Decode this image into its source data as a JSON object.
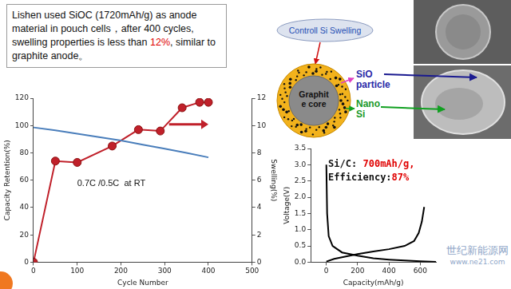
{
  "text_box": {
    "parts": [
      {
        "text": "Lishen used SiOC (1720mAh/g) as anode material in pouch cells，after 400 cycles, swelling properties is less than "
      },
      {
        "text": "12%",
        "color": "#e00000"
      },
      {
        "text": ", similar to graphite anode。"
      }
    ]
  },
  "diagram": {
    "callout": "Controll Si Swelling",
    "core": [
      "Graphit",
      "e core"
    ],
    "labels": [
      {
        "lines": [
          "SiO",
          "particle"
        ],
        "color": "#2a2aa8"
      },
      {
        "lines": [
          "Nano",
          "Si"
        ],
        "color": "#1a9a2a"
      }
    ]
  },
  "watermark": [
    "世纪新能源网",
    "www.ne21.com"
  ],
  "chart_data": [
    {
      "type": "line",
      "x_label": "Cycle Number",
      "y_label": "Capacity Retention(%)",
      "y2_label": "Swelling(%)",
      "annotations": [
        "0.7C /0.5C  at RT"
      ],
      "xlim": [
        0,
        500
      ],
      "xticks": [
        0,
        100,
        200,
        300,
        400,
        500
      ],
      "ylim": [
        0,
        120
      ],
      "yticks": [
        0,
        20,
        40,
        60,
        80,
        100,
        120
      ],
      "y2lim": [
        0,
        12
      ],
      "y2ticks": [
        0,
        2,
        4,
        6,
        8,
        10,
        12
      ],
      "grid": false,
      "series": [
        {
          "color": "#4a7ebb",
          "marker": "none",
          "x": [
            0,
            50,
            100,
            150,
            200,
            250,
            300,
            350,
            400
          ],
          "values": [
            98.6,
            96.5,
            94,
            91.5,
            89,
            86,
            83,
            80,
            76.7
          ]
        },
        {
          "color": "#c0202a",
          "marker": "circle",
          "axis": "y2",
          "x": [
            0,
            50,
            100,
            180,
            240,
            290,
            340,
            380,
            400
          ],
          "values": [
            0,
            7.4,
            7.3,
            8.5,
            9.7,
            9.6,
            11.3,
            11.7,
            11.7
          ]
        }
      ]
    },
    {
      "type": "line",
      "x_label": "Capacity(mAh/g)",
      "y_label": "Voltage(V)",
      "annotations": [
        {
          "parts": [
            {
              "text": "Si/C: "
            },
            {
              "text": "700mAh/g,",
              "color": "#e00000"
            }
          ]
        },
        {
          "parts": [
            {
              "text": "Efficiency:"
            },
            {
              "text": "87%",
              "color": "#e00000"
            }
          ]
        }
      ],
      "xlim": [
        -100,
        700
      ],
      "xticks": [
        0,
        200,
        400,
        600
      ],
      "ylim": [
        0,
        3.5
      ],
      "yticks": [
        {
          "value": 0,
          "label": "0.0"
        },
        0.5,
        {
          "value": 1,
          "label": "1.0"
        },
        1.5,
        {
          "value": 2,
          "label": "2.0"
        },
        2.5,
        {
          "value": 3,
          "label": "3.0"
        },
        3.5
      ],
      "grid": false,
      "series": [
        {
          "color": "#000000",
          "marker": "none",
          "x": [
            0,
            5,
            15,
            40,
            100,
            200,
            300,
            400,
            500,
            600,
            700
          ],
          "values": [
            3.0,
            1.5,
            0.8,
            0.5,
            0.3,
            0.2,
            0.12,
            0.08,
            0.05,
            0.03,
            0.01
          ]
        },
        {
          "color": "#000000",
          "marker": "none",
          "x": [
            0,
            50,
            100,
            200,
            300,
            400,
            500,
            560,
            590,
            610,
            625
          ],
          "values": [
            0.02,
            0.1,
            0.15,
            0.25,
            0.33,
            0.4,
            0.5,
            0.65,
            0.9,
            1.25,
            1.7
          ]
        }
      ]
    }
  ]
}
